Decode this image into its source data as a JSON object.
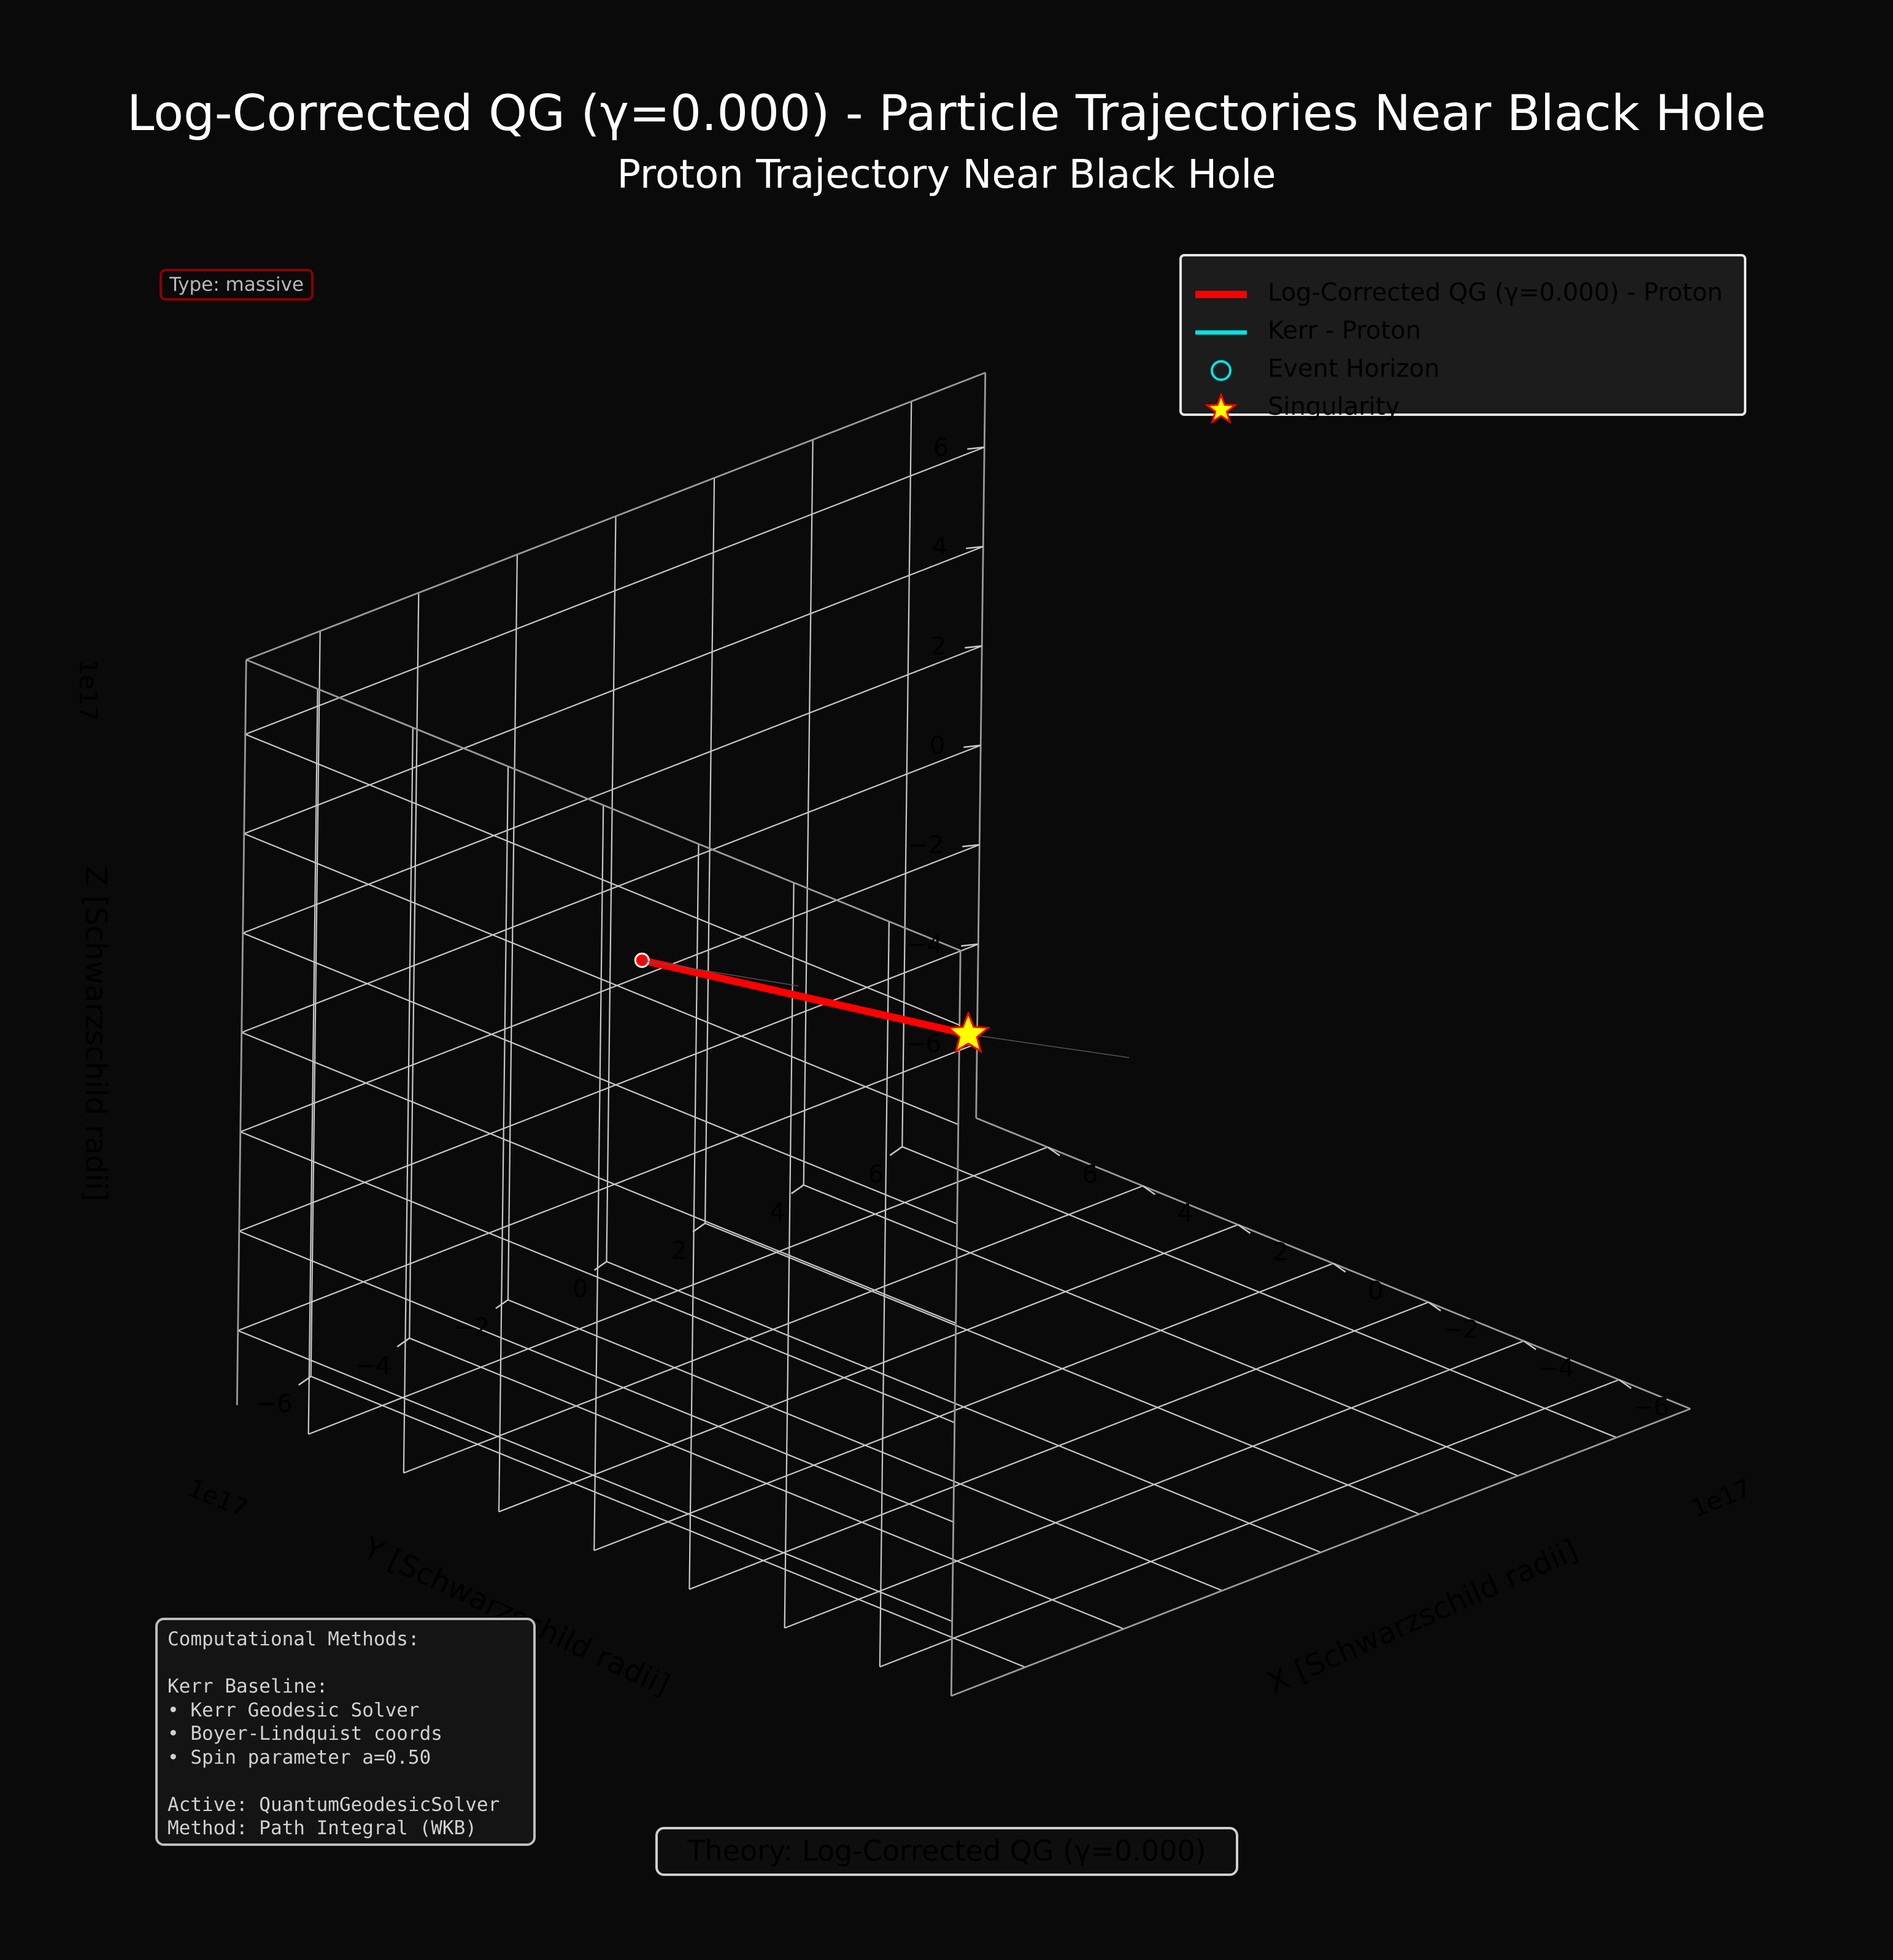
{
  "title": "Log-Corrected QG (γ=0.000) - Particle Trajectories Near Black Hole",
  "subtitle": "Proton Trajectory Near Black Hole",
  "type_badge": "Type: massive",
  "legend": [
    {
      "label": "Log-Corrected QG (γ=0.000) - Proton",
      "kind": "line",
      "color": "#ff0000"
    },
    {
      "label": "Kerr - Proton",
      "kind": "line",
      "color": "#00e5e5"
    },
    {
      "label": "Event Horizon",
      "kind": "circle",
      "color": "#00e5e5"
    },
    {
      "label": "Singularity",
      "kind": "star",
      "color": "#ffff00",
      "edge": "#ff0000"
    }
  ],
  "methods_text": "Computational Methods:\n\nKerr Baseline:\n• Kerr Geodesic Solver\n• Boyer-Lindquist coords\n• Spin parameter a=0.50\n\nActive: QuantumGeodesicSolver\nMethod: Path Integral (WKB)",
  "theory_label": "Theory: Log-Corrected QG (γ=0.000)",
  "colors": {
    "background": "#0a0a0a",
    "grid": "#c8c8c8",
    "trajectory": "#ff0000",
    "horizon": "#00e5e5",
    "star": "#ffff00"
  },
  "chart_data": {
    "type": "scatter",
    "projection": "3d",
    "axes": {
      "x": {
        "label": "X [Schwarzschild radii]",
        "ticks": [
          -6,
          -4,
          -2,
          0,
          2,
          4,
          6
        ],
        "tick_labels": [
          "−6",
          "−4",
          "−2",
          "0",
          "2",
          "4",
          "6"
        ],
        "offset_label": "1e17",
        "range": [
          -7.5,
          7.5
        ]
      },
      "y": {
        "label": "Y [Schwarzschild radii]",
        "ticks": [
          -6,
          -4,
          -2,
          0,
          2,
          4,
          6
        ],
        "tick_labels": [
          "−6",
          "−4",
          "−2",
          "0",
          "2",
          "4",
          "6"
        ],
        "offset_label": "1e17",
        "range": [
          -7.5,
          7.5
        ]
      },
      "z": {
        "label": "Z [Schwarzschild radii]",
        "ticks": [
          -6,
          -4,
          -2,
          0,
          2,
          4,
          6
        ],
        "tick_labels": [
          "−6",
          "−4",
          "−2",
          "0",
          "2",
          "4",
          "6"
        ],
        "offset_label": "1e17",
        "range": [
          -7.5,
          7.5
        ]
      }
    },
    "grid": true,
    "legend_position": "top-right",
    "series": [
      {
        "name": "Log-Corrected QG (γ=0.000) - Proton",
        "color": "#ff0000",
        "points": [
          {
            "x": 0.0,
            "y": 0.0,
            "z": 0.0
          },
          {
            "x": 5.3,
            "y": -1.5,
            "z": 0.0
          }
        ]
      },
      {
        "name": "Kerr - Proton",
        "color": "#00e5e5",
        "points": [
          {
            "x": 0.0,
            "y": 0.0,
            "z": 0.0
          }
        ]
      }
    ],
    "markers": [
      {
        "name": "Event Horizon",
        "x": 0,
        "y": 0,
        "z": 0
      },
      {
        "name": "Singularity",
        "x": 0,
        "y": 0,
        "z": 0
      }
    ]
  }
}
